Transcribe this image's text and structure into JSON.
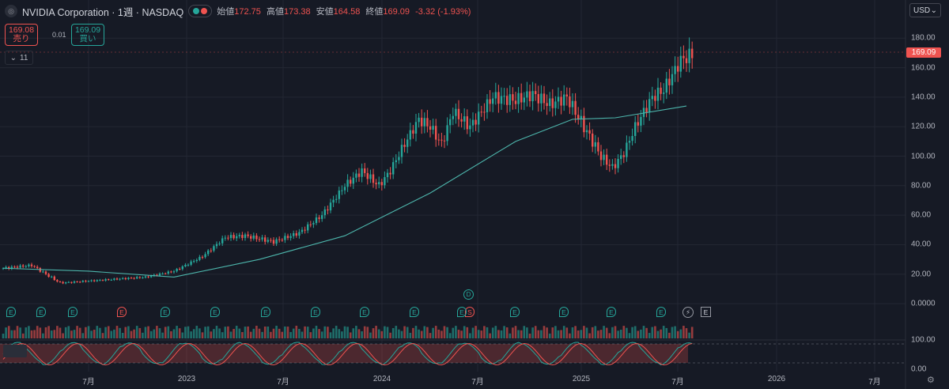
{
  "header": {
    "title": "NVIDIA Corporation · 1週 · NASDAQ",
    "ohlc_labels": [
      "始値",
      "高値",
      "安値",
      "終値"
    ],
    "ohlc_values": [
      "172.75",
      "173.38",
      "164.58",
      "169.09"
    ],
    "change": "-3.32 (-1.93%)"
  },
  "trade": {
    "sell_price": "169.08",
    "sell_label": "売り",
    "spread": "0.01",
    "buy_price": "169.09",
    "buy_label": "買い"
  },
  "indicator_toggle": {
    "count": "11"
  },
  "currency": {
    "label": "USD",
    "icon": "chevron-down-icon"
  },
  "price_tag": "169.09",
  "colors": {
    "up": "#26a69a",
    "down": "#ef5350",
    "ma": "#4db6ac",
    "bg": "#161a25"
  },
  "events": {
    "earnings_label": "E",
    "dividend_label": "D",
    "split_label": "S"
  },
  "chart_data": {
    "type": "candlestick",
    "timeframe": "1週",
    "y_axis": {
      "min": 0,
      "max": 180,
      "ticks": [
        "180.00",
        "160.00",
        "140.00",
        "120.00",
        "100.00",
        "80.00",
        "60.00",
        "40.00",
        "20.00",
        "0.0000"
      ]
    },
    "x_axis": {
      "ticks": [
        "7月",
        "2023",
        "7月",
        "2024",
        "7月",
        "2025",
        "7月",
        "2026",
        "7月"
      ]
    },
    "last_price": 169.09,
    "close_anchors": [
      [
        0,
        24
      ],
      [
        10,
        26
      ],
      [
        20,
        14
      ],
      [
        35,
        16
      ],
      [
        50,
        18
      ],
      [
        60,
        22
      ],
      [
        70,
        32
      ],
      [
        78,
        45
      ],
      [
        85,
        46
      ],
      [
        95,
        42
      ],
      [
        104,
        48
      ],
      [
        112,
        60
      ],
      [
        120,
        80
      ],
      [
        126,
        90
      ],
      [
        132,
        80
      ],
      [
        136,
        90
      ],
      [
        140,
        105
      ],
      [
        146,
        125
      ],
      [
        150,
        120
      ],
      [
        154,
        108
      ],
      [
        158,
        130
      ],
      [
        164,
        120
      ],
      [
        172,
        140
      ],
      [
        180,
        138
      ],
      [
        186,
        142
      ],
      [
        192,
        135
      ],
      [
        198,
        140
      ],
      [
        204,
        120
      ],
      [
        210,
        100
      ],
      [
        214,
        92
      ],
      [
        218,
        102
      ],
      [
        222,
        120
      ],
      [
        228,
        140
      ],
      [
        232,
        145
      ],
      [
        238,
        165
      ],
      [
        242,
        169
      ]
    ],
    "moving_average": [
      [
        0,
        24
      ],
      [
        30,
        22
      ],
      [
        60,
        18
      ],
      [
        90,
        30
      ],
      [
        120,
        46
      ],
      [
        150,
        75
      ],
      [
        180,
        110
      ],
      [
        200,
        125
      ],
      [
        215,
        126
      ],
      [
        240,
        134
      ]
    ],
    "volume_pane": {
      "label": "Volume"
    },
    "oscillator": {
      "type": "stochastic",
      "ticks": [
        "100.00",
        "0.00"
      ],
      "upper_band": 80,
      "lower_band": 20
    }
  }
}
